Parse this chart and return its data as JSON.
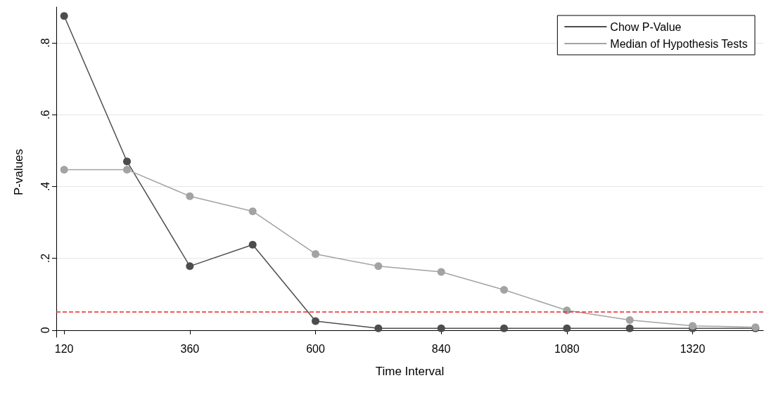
{
  "chart_data": {
    "type": "line",
    "xlabel": "Time Interval",
    "ylabel": "P-values",
    "x": [
      120,
      240,
      360,
      480,
      600,
      720,
      840,
      960,
      1080,
      1200,
      1320,
      1440
    ],
    "series": [
      {
        "name": "Chow P-Value",
        "color": "#4d4d4d",
        "values": [
          0.875,
          0.47,
          0.178,
          0.238,
          0.025,
          0.005,
          0.005,
          0.005,
          0.005,
          0.005,
          0.005,
          0.005
        ]
      },
      {
        "name": "Median of Hypothesis Tests",
        "color": "#a3a3a3",
        "values": [
          0.447,
          0.447,
          0.373,
          0.331,
          0.212,
          0.178,
          0.162,
          0.112,
          0.055,
          0.028,
          0.012,
          0.008
        ]
      }
    ],
    "xlim": [
      105,
      1455
    ],
    "xticks": [
      120,
      360,
      600,
      840,
      1080,
      1320
    ],
    "ylim": [
      -0.02,
      0.9
    ],
    "yticks": [
      0,
      {
        "value": 0.2,
        "label": ".2"
      },
      {
        "value": 0.4,
        "label": ".4"
      },
      {
        "value": 0.6,
        "label": ".6"
      },
      {
        "value": 0.8,
        "label": ".8"
      }
    ],
    "ref_lines": [
      {
        "axis": "y",
        "value": 0.05,
        "color": "#e8262a",
        "line_style": "dashed"
      }
    ],
    "grid": "y",
    "legend": "top right",
    "marker": "circle",
    "line_style": "solid"
  }
}
